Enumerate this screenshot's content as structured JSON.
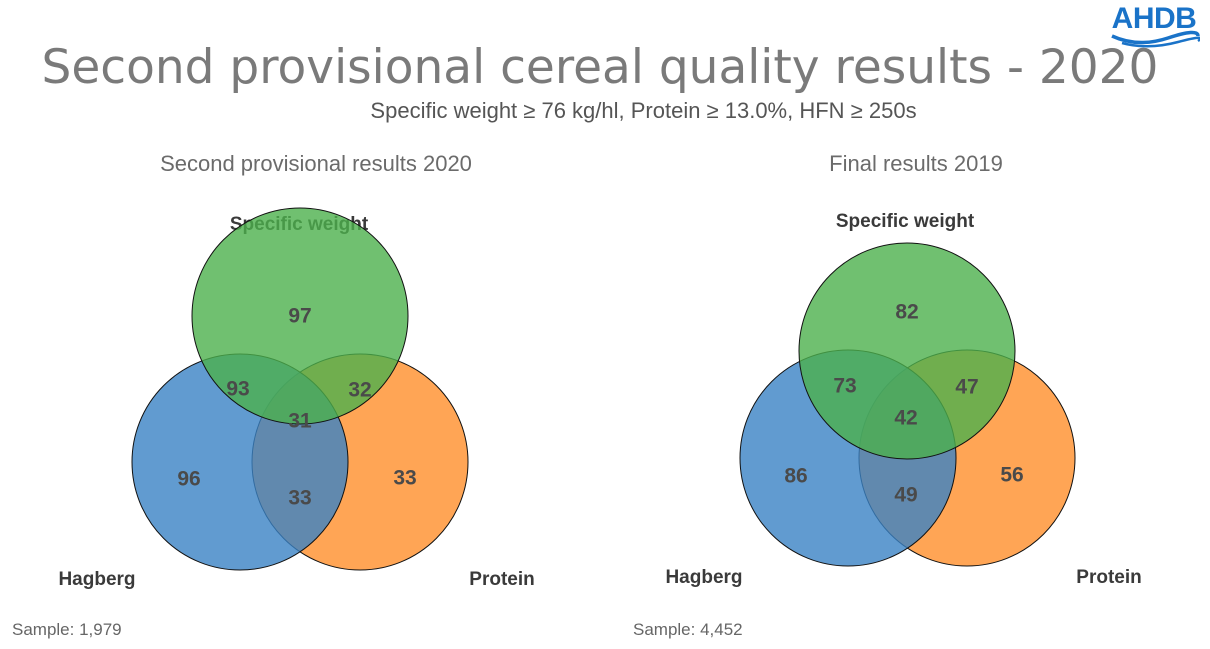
{
  "logo": {
    "text": "AHDB"
  },
  "title": "Second provisional cereal quality results - 2020",
  "subtitle": "Specific weight ≥ 76 kg/hl, Protein ≥ 13.0%, HFN ≥ 250s",
  "colors": {
    "specific_weight": "#4cb04c",
    "hagberg": "#3a82c4",
    "protein": "#ff8f2a",
    "brand": "#1a73c8"
  },
  "chart_data": [
    {
      "type": "venn",
      "title": "Second provisional results 2020",
      "sets": [
        "Specific weight",
        "Hagberg",
        "Protein"
      ],
      "regions": {
        "specific_weight_only": 97,
        "hagberg_only": 96,
        "protein_only": 33,
        "specific_weight_and_hagberg": 93,
        "specific_weight_and_protein": 32,
        "hagberg_and_protein": 33,
        "all_three": 31
      },
      "sample": "Sample: 1,979"
    },
    {
      "type": "venn",
      "title": "Final results 2019",
      "sets": [
        "Specific weight",
        "Hagberg",
        "Protein"
      ],
      "regions": {
        "specific_weight_only": 82,
        "hagberg_only": 86,
        "protein_only": 56,
        "specific_weight_and_hagberg": 73,
        "specific_weight_and_protein": 47,
        "hagberg_and_protein": 49,
        "all_three": 42
      },
      "sample": "Sample: 4,452"
    }
  ]
}
